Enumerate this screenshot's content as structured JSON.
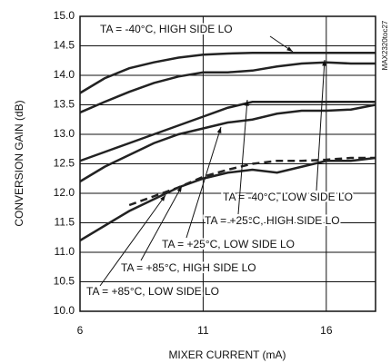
{
  "chart_data": {
    "type": "line",
    "x_label": "MIXER CURRENT (mA)",
    "y_label": "CONVERSION GAIN (dB)",
    "watermark": "MAX2320toc27",
    "x": [
      6,
      7,
      8,
      9,
      10,
      11,
      12,
      13,
      14,
      15,
      16,
      17,
      18
    ],
    "series": [
      {
        "name": "TA = -40°C, HIGH SIDE LO",
        "color": "#222222",
        "dashed": false,
        "values": [
          13.7,
          13.95,
          14.12,
          14.22,
          14.3,
          14.35,
          14.37,
          14.38,
          14.38,
          14.38,
          14.38,
          14.38,
          14.38
        ]
      },
      {
        "name": "TA = -40°C, LOW SIDE LO",
        "color": "#222222",
        "dashed": false,
        "values": [
          13.37,
          13.55,
          13.72,
          13.87,
          13.98,
          14.05,
          14.05,
          14.08,
          14.15,
          14.2,
          14.22,
          14.2,
          14.2
        ]
      },
      {
        "name": "TA = +25°C, HIGH SIDE LO",
        "color": "#222222",
        "dashed": false,
        "values": [
          12.55,
          12.7,
          12.85,
          13.0,
          13.15,
          13.3,
          13.45,
          13.55,
          13.55,
          13.55,
          13.55,
          13.55,
          13.55
        ]
      },
      {
        "name": "TA = +25°C, LOW SIDE LO",
        "color": "#222222",
        "dashed": false,
        "values": [
          12.2,
          12.45,
          12.65,
          12.85,
          13.0,
          13.1,
          13.2,
          13.25,
          13.35,
          13.4,
          13.4,
          13.42,
          13.5
        ]
      },
      {
        "name": "TA = +85°C, HIGH SIDE LO",
        "color": "#222222",
        "dashed": true,
        "values": [
          null,
          null,
          11.8,
          11.95,
          12.1,
          12.28,
          12.4,
          12.5,
          12.55,
          12.55,
          12.57,
          12.6,
          12.6
        ]
      },
      {
        "name": "TA = +85°C, LOW SIDE LO",
        "color": "#222222",
        "dashed": false,
        "values": [
          11.2,
          11.45,
          11.7,
          11.9,
          12.1,
          12.25,
          12.35,
          12.4,
          12.35,
          12.45,
          12.55,
          12.55,
          12.6
        ]
      }
    ],
    "xlim": [
      6,
      18
    ],
    "xticks": [
      6,
      11,
      16
    ],
    "ylim": [
      10,
      15
    ],
    "yticks": [
      {
        "value": 10,
        "label": "10.0"
      },
      10.5,
      {
        "value": 11,
        "label": "11.0"
      },
      11.5,
      {
        "value": 12,
        "label": "12.0"
      },
      12.5,
      {
        "value": 13,
        "label": "13.0"
      },
      13.5,
      {
        "value": 14,
        "label": "14.0"
      },
      14.5,
      {
        "value": 15,
        "label": "15.0"
      }
    ],
    "grid": true
  }
}
